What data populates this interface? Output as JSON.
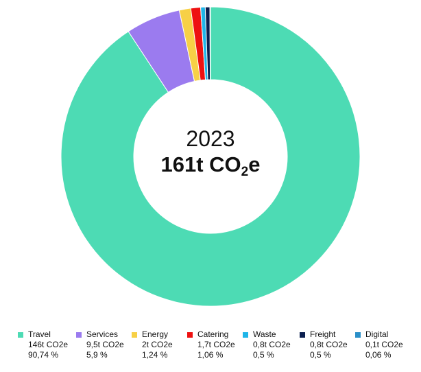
{
  "chart_data": {
    "type": "pie",
    "variant": "donut",
    "center_label": {
      "year": "2023",
      "total_prefix": "161t CO",
      "total_subscript": "2",
      "total_suffix": "e"
    },
    "legend_position": "bottom",
    "series": [
      {
        "name": "Travel",
        "value": 146,
        "amount_label": "146t CO2e",
        "percent": 90.74,
        "percent_label": "90,74 %",
        "color": "#4DDBB4"
      },
      {
        "name": "Services",
        "value": 9.5,
        "amount_label": "9,5t CO2e",
        "percent": 5.9,
        "percent_label": "5,9 %",
        "color": "#9B7BEF"
      },
      {
        "name": "Energy",
        "value": 2,
        "amount_label": "2t CO2e",
        "percent": 1.24,
        "percent_label": "1,24 %",
        "color": "#F7D046"
      },
      {
        "name": "Catering",
        "value": 1.7,
        "amount_label": "1,7t CO2e",
        "percent": 1.06,
        "percent_label": "1,06 %",
        "color": "#EE1111"
      },
      {
        "name": "Waste",
        "value": 0.8,
        "amount_label": "0,8t CO2e",
        "percent": 0.5,
        "percent_label": "0,5 %",
        "color": "#1FB5E8"
      },
      {
        "name": "Freight",
        "value": 0.8,
        "amount_label": "0,8t CO2e",
        "percent": 0.5,
        "percent_label": "0,5 %",
        "color": "#0B1F4F"
      },
      {
        "name": "Digital",
        "value": 0.1,
        "amount_label": "0,1t CO2e",
        "percent": 0.06,
        "percent_label": "0,06 %",
        "color": "#2A8FC8"
      }
    ]
  }
}
